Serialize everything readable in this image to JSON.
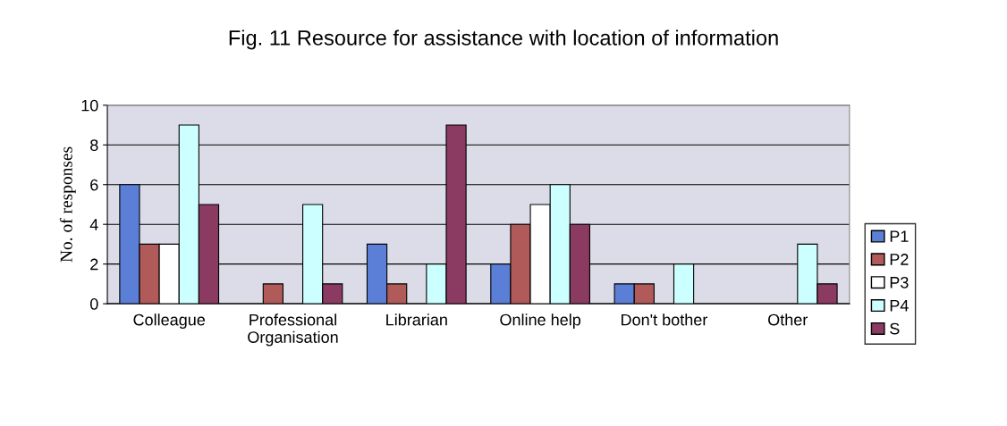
{
  "chart_data": {
    "type": "bar",
    "title": "Fig. 11 Resource for assistance with location of information",
    "ylabel": "No. of responses",
    "categories": [
      "Colleague",
      "Professional\nOrganisation",
      "Librarian",
      "Online help",
      "Don't bother",
      "Other"
    ],
    "series": [
      {
        "name": "P1",
        "color": "#5b7fd6",
        "values": [
          6,
          0,
          3,
          2,
          1,
          0
        ]
      },
      {
        "name": "P2",
        "color": "#b05a5a",
        "values": [
          3,
          1,
          1,
          4,
          1,
          0
        ]
      },
      {
        "name": "P3",
        "color": "#ffffff",
        "values": [
          3,
          0,
          0,
          5,
          0,
          0
        ]
      },
      {
        "name": "P4",
        "color": "#ccffff",
        "values": [
          9,
          5,
          2,
          6,
          2,
          3
        ]
      },
      {
        "name": "S",
        "color": "#8b3a62",
        "values": [
          5,
          1,
          9,
          4,
          0,
          1
        ]
      }
    ],
    "ylim": [
      0,
      10
    ],
    "yticks": [
      0,
      2,
      4,
      6,
      8,
      10
    ],
    "grid": "y",
    "legend": "right"
  }
}
